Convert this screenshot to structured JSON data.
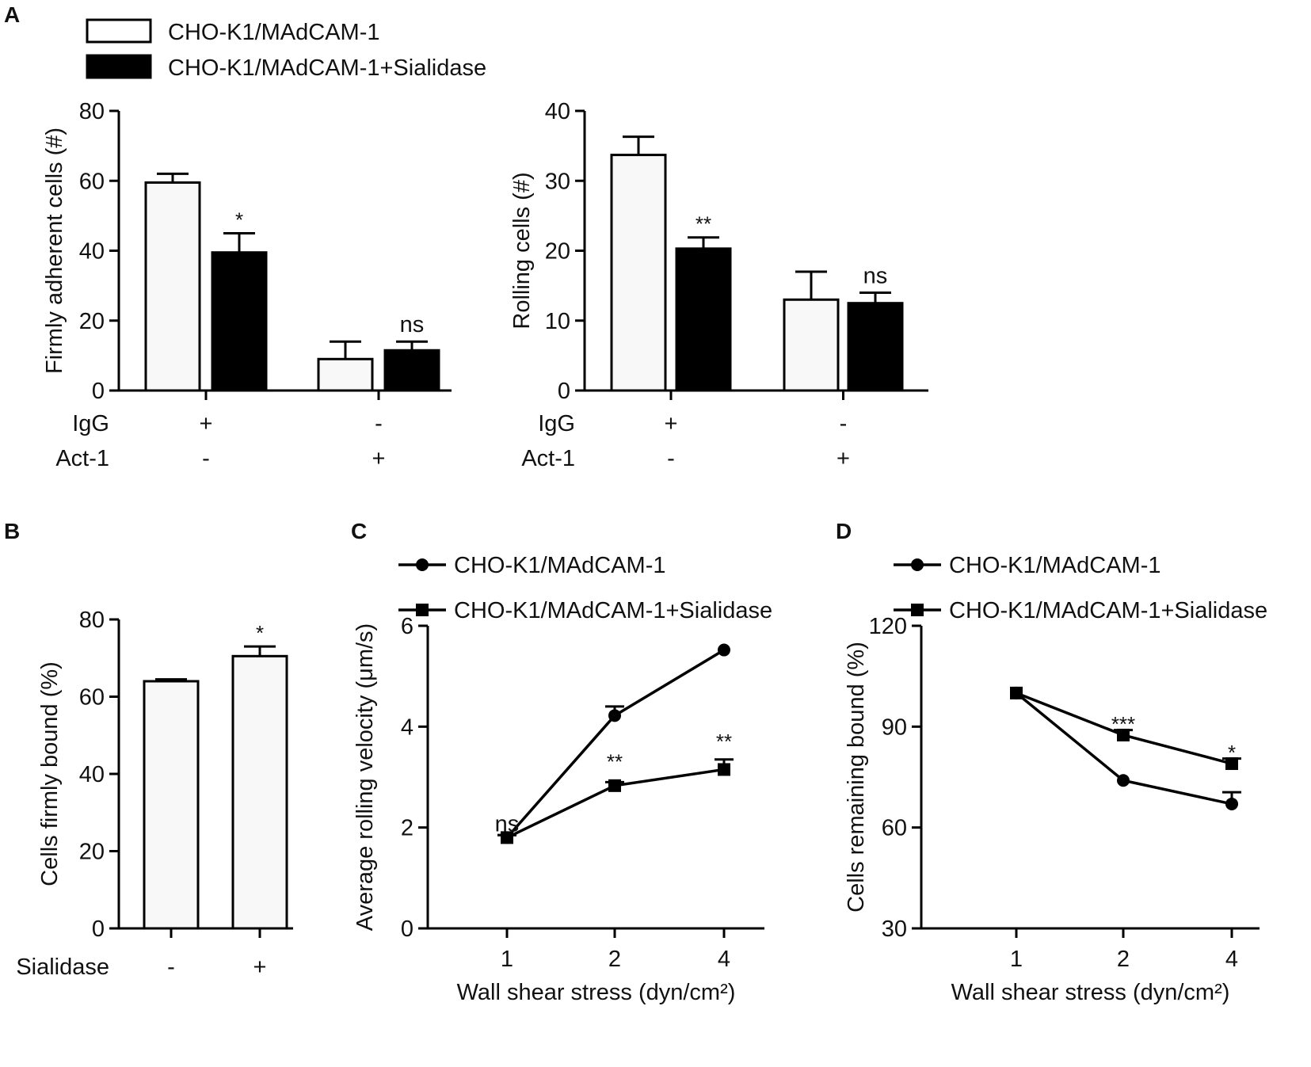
{
  "legend_bar": {
    "items": [
      {
        "label": "CHO-K1/MAdCAM-1",
        "style": "open"
      },
      {
        "label": "CHO-K1/MAdCAM-1+Sialidase",
        "style": "filled"
      }
    ]
  },
  "legend_line": {
    "items": [
      {
        "label": "CHO-K1/MAdCAM-1",
        "marker": "circle"
      },
      {
        "label": "CHO-K1/MAdCAM-1+Sialidase",
        "marker": "square"
      }
    ]
  },
  "chart_data": [
    {
      "id": "A1",
      "panel_label": "A",
      "type": "bar",
      "ylabel": "Firmly adherent cells (#)",
      "ylim": [
        0,
        80
      ],
      "yticks": [
        0,
        20,
        40,
        60,
        80
      ],
      "condition_rows": [
        {
          "label": "IgG",
          "marks": [
            "+",
            "-"
          ]
        },
        {
          "label": "Act-1",
          "marks": [
            "-",
            "+"
          ]
        }
      ],
      "groups": [
        {
          "bars": [
            {
              "series": "CHO-K1/MAdCAM-1",
              "value": 59.5,
              "error": 2.5,
              "fill": "#f8f8f8"
            },
            {
              "series": "CHO-K1/MAdCAM-1+Sialidase",
              "value": 39.5,
              "error": 5.5,
              "fill": "#000000",
              "annotation": "*"
            }
          ]
        },
        {
          "bars": [
            {
              "series": "CHO-K1/MAdCAM-1",
              "value": 9,
              "error": 5,
              "fill": "#f8f8f8"
            },
            {
              "series": "CHO-K1/MAdCAM-1+Sialidase",
              "value": 11.5,
              "error": 2.5,
              "fill": "#000000",
              "annotation": "ns"
            }
          ]
        }
      ]
    },
    {
      "id": "A2",
      "panel_label": "",
      "type": "bar",
      "ylabel": "Rolling cells (#)",
      "ylim": [
        0,
        40
      ],
      "yticks": [
        0,
        10,
        20,
        30,
        40
      ],
      "condition_rows": [
        {
          "label": "IgG",
          "marks": [
            "+",
            "-"
          ]
        },
        {
          "label": "Act-1",
          "marks": [
            "-",
            "+"
          ]
        }
      ],
      "groups": [
        {
          "bars": [
            {
              "series": "CHO-K1/MAdCAM-1",
              "value": 33.7,
              "error": 2.6,
              "fill": "#f8f8f8"
            },
            {
              "series": "CHO-K1/MAdCAM-1+Sialidase",
              "value": 20.3,
              "error": 1.6,
              "fill": "#000000",
              "annotation": "**"
            }
          ]
        },
        {
          "bars": [
            {
              "series": "CHO-K1/MAdCAM-1",
              "value": 13,
              "error": 4,
              "fill": "#f8f8f8"
            },
            {
              "series": "CHO-K1/MAdCAM-1+Sialidase",
              "value": 12.5,
              "error": 1.5,
              "fill": "#000000",
              "annotation": "ns"
            }
          ]
        }
      ]
    },
    {
      "id": "B",
      "panel_label": "B",
      "type": "bar",
      "ylabel": "Cells firmly bound (%)",
      "ylim": [
        0,
        80
      ],
      "yticks": [
        0,
        20,
        40,
        60,
        80
      ],
      "condition_rows": [
        {
          "label": "Sialidase",
          "marks": [
            "-",
            "+"
          ]
        }
      ],
      "groups": [
        {
          "bars": [
            {
              "series": "CHO-K1/MAdCAM-1",
              "value": 64,
              "error": 0.5,
              "fill": "#f8f8f8"
            }
          ]
        },
        {
          "bars": [
            {
              "series": "CHO-K1/MAdCAM-1+Sialidase",
              "value": 70.5,
              "error": 2.5,
              "fill": "#f8f8f8",
              "annotation": "*"
            }
          ]
        }
      ]
    },
    {
      "id": "C",
      "panel_label": "C",
      "type": "line",
      "xlabel": "Wall shear stress (dyn/cm²)",
      "ylabel": "Average rolling velocity (μm/s)",
      "categories": [
        "1",
        "2",
        "4"
      ],
      "ylim": [
        0,
        6
      ],
      "yticks": [
        0,
        2,
        4,
        6
      ],
      "series": [
        {
          "name": "CHO-K1/MAdCAM-1",
          "marker": "circle",
          "values": [
            1.8,
            4.22,
            5.52
          ],
          "errors": [
            0.05,
            0.18,
            0
          ]
        },
        {
          "name": "CHO-K1/MAdCAM-1+Sialidase",
          "marker": "square",
          "values": [
            1.8,
            2.83,
            3.15
          ],
          "errors": [
            0.05,
            0.07,
            0.2
          ]
        }
      ],
      "annotations": [
        {
          "category": "1",
          "text": "ns",
          "value": 2.08
        },
        {
          "category": "2",
          "text": "**",
          "value": 3.32
        },
        {
          "category": "4",
          "text": "**",
          "value": 3.72
        }
      ]
    },
    {
      "id": "D",
      "panel_label": "D",
      "type": "line",
      "xlabel": "Wall shear stress (dyn/cm²)",
      "ylabel": "Cells remaining bound (%)",
      "categories": [
        "1",
        "2",
        "4"
      ],
      "ylim": [
        30,
        120
      ],
      "yticks": [
        30,
        60,
        90,
        120
      ],
      "series": [
        {
          "name": "CHO-K1/MAdCAM-1",
          "marker": "circle",
          "values": [
            100,
            74,
            67
          ],
          "errors": [
            0,
            0,
            3.5
          ]
        },
        {
          "name": "CHO-K1/MAdCAM-1+Sialidase",
          "marker": "square",
          "values": [
            100,
            87.5,
            79
          ],
          "errors": [
            0,
            1.5,
            1.5
          ]
        }
      ],
      "annotations": [
        {
          "category": "2",
          "text": "***",
          "value": 91
        },
        {
          "category": "4",
          "text": "*",
          "value": 82.5
        }
      ]
    }
  ]
}
